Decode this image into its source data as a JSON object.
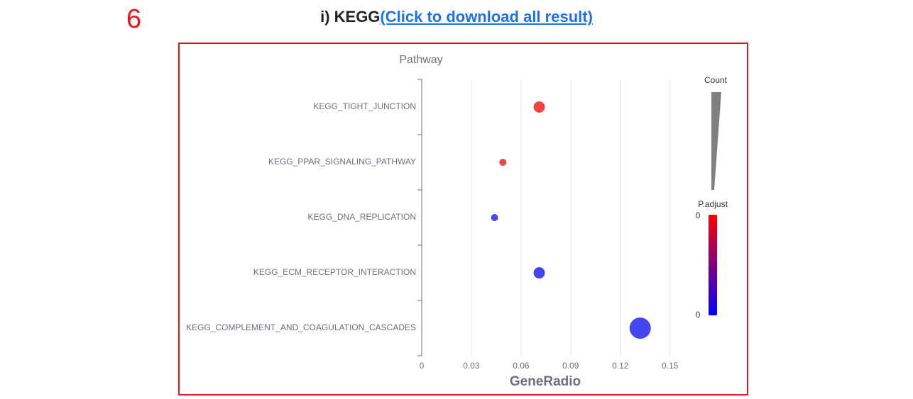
{
  "page_number": "6",
  "heading": {
    "prefix": "i) KEGG",
    "link": "(Click to download all result)"
  },
  "chart_data": {
    "type": "bubble",
    "y_title": "Pathway",
    "x_title": "GeneRadio",
    "categories": [
      "KEGG_TIGHT_JUNCTION",
      "KEGG_PPAR_SIGNALING_PATHWAY",
      "KEGG_DNA_REPLICATION",
      "KEGG_ECM_RECEPTOR_INTERACTION",
      "KEGG_COMPLEMENT_AND_COAGULATION_CASCADES"
    ],
    "values": [
      0.071,
      0.049,
      0.044,
      0.071,
      0.132
    ],
    "sizes": [
      8,
      5,
      5,
      8,
      15
    ],
    "colors": [
      "#f03c3c",
      "#f03c3c",
      "#3c3cf0",
      "#3c3cf0",
      "#3c3cf0"
    ],
    "xlim": [
      0,
      0.16
    ],
    "xticks": [
      0,
      0.03,
      0.06,
      0.09,
      0.12,
      0.15
    ],
    "grid": true,
    "legend": {
      "size_title": "Count",
      "color_title": "P.adjust",
      "color_labels": [
        0,
        0
      ]
    }
  }
}
